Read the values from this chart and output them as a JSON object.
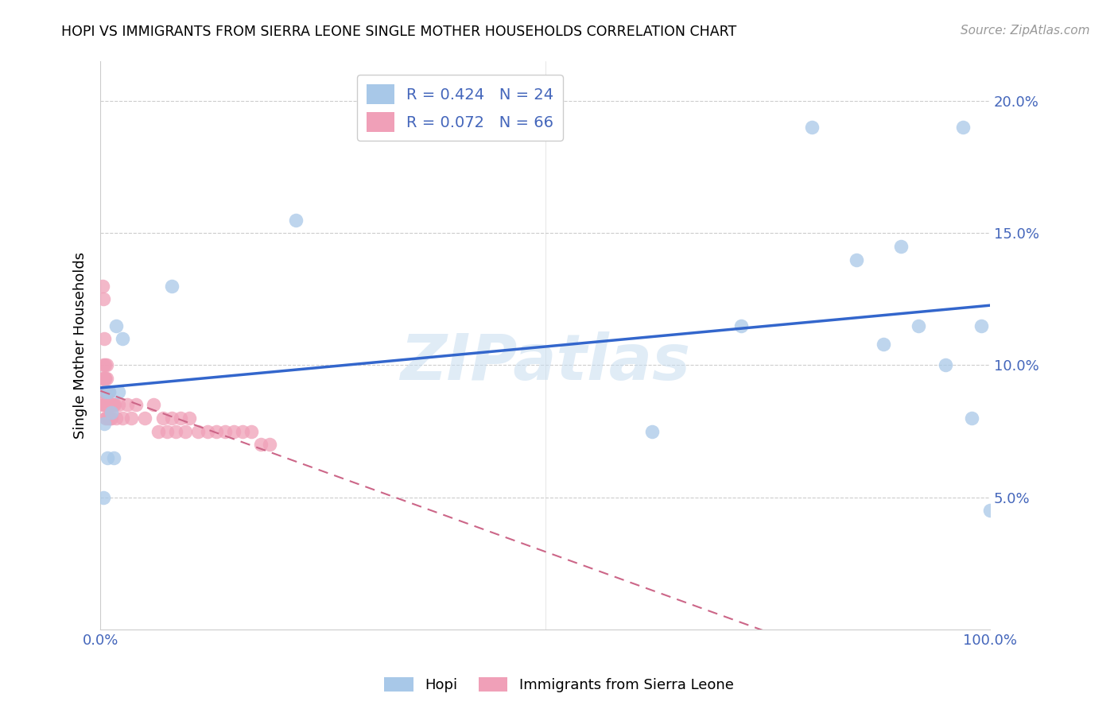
{
  "title": "HOPI VS IMMIGRANTS FROM SIERRA LEONE SINGLE MOTHER HOUSEHOLDS CORRELATION CHART",
  "source": "Source: ZipAtlas.com",
  "ylabel": "Single Mother Households",
  "xlim": [
    0,
    1.0
  ],
  "ylim": [
    0,
    0.215
  ],
  "hopi_color": "#a8c8e8",
  "sl_color": "#f0a0b8",
  "hopi_line_color": "#3366cc",
  "sl_line_color": "#cc6688",
  "watermark": "ZIPatlas",
  "hopi_R": "0.424",
  "hopi_N": "24",
  "sl_R": "0.072",
  "sl_N": "66",
  "hopi_x": [
    0.003,
    0.004,
    0.006,
    0.008,
    0.01,
    0.012,
    0.015,
    0.018,
    0.02,
    0.025,
    0.08,
    0.22,
    0.62,
    0.72,
    0.8,
    0.85,
    0.88,
    0.9,
    0.92,
    0.95,
    0.97,
    0.98,
    0.99,
    1.0
  ],
  "hopi_y": [
    0.05,
    0.078,
    0.09,
    0.065,
    0.09,
    0.082,
    0.065,
    0.115,
    0.09,
    0.11,
    0.13,
    0.155,
    0.075,
    0.115,
    0.19,
    0.14,
    0.108,
    0.145,
    0.115,
    0.1,
    0.19,
    0.08,
    0.115,
    0.045
  ],
  "sl_x": [
    0.002,
    0.002,
    0.002,
    0.003,
    0.003,
    0.003,
    0.004,
    0.004,
    0.004,
    0.005,
    0.005,
    0.005,
    0.005,
    0.005,
    0.005,
    0.005,
    0.006,
    0.006,
    0.006,
    0.006,
    0.006,
    0.007,
    0.007,
    0.007,
    0.008,
    0.008,
    0.008,
    0.009,
    0.009,
    0.009,
    0.01,
    0.01,
    0.01,
    0.011,
    0.011,
    0.012,
    0.012,
    0.013,
    0.014,
    0.015,
    0.016,
    0.018,
    0.02,
    0.025,
    0.03,
    0.035,
    0.04,
    0.05,
    0.06,
    0.065,
    0.07,
    0.075,
    0.08,
    0.085,
    0.09,
    0.095,
    0.1,
    0.11,
    0.12,
    0.13,
    0.14,
    0.15,
    0.16,
    0.17,
    0.18,
    0.19
  ],
  "sl_y": [
    0.095,
    0.085,
    0.13,
    0.125,
    0.1,
    0.09,
    0.11,
    0.095,
    0.085,
    0.1,
    0.095,
    0.095,
    0.09,
    0.09,
    0.085,
    0.085,
    0.09,
    0.085,
    0.085,
    0.08,
    0.08,
    0.1,
    0.095,
    0.09,
    0.09,
    0.085,
    0.085,
    0.09,
    0.085,
    0.08,
    0.09,
    0.085,
    0.08,
    0.085,
    0.08,
    0.085,
    0.08,
    0.085,
    0.085,
    0.085,
    0.085,
    0.08,
    0.085,
    0.08,
    0.085,
    0.08,
    0.085,
    0.08,
    0.085,
    0.075,
    0.08,
    0.075,
    0.08,
    0.075,
    0.08,
    0.075,
    0.08,
    0.075,
    0.075,
    0.075,
    0.075,
    0.075,
    0.075,
    0.075,
    0.07,
    0.07
  ]
}
